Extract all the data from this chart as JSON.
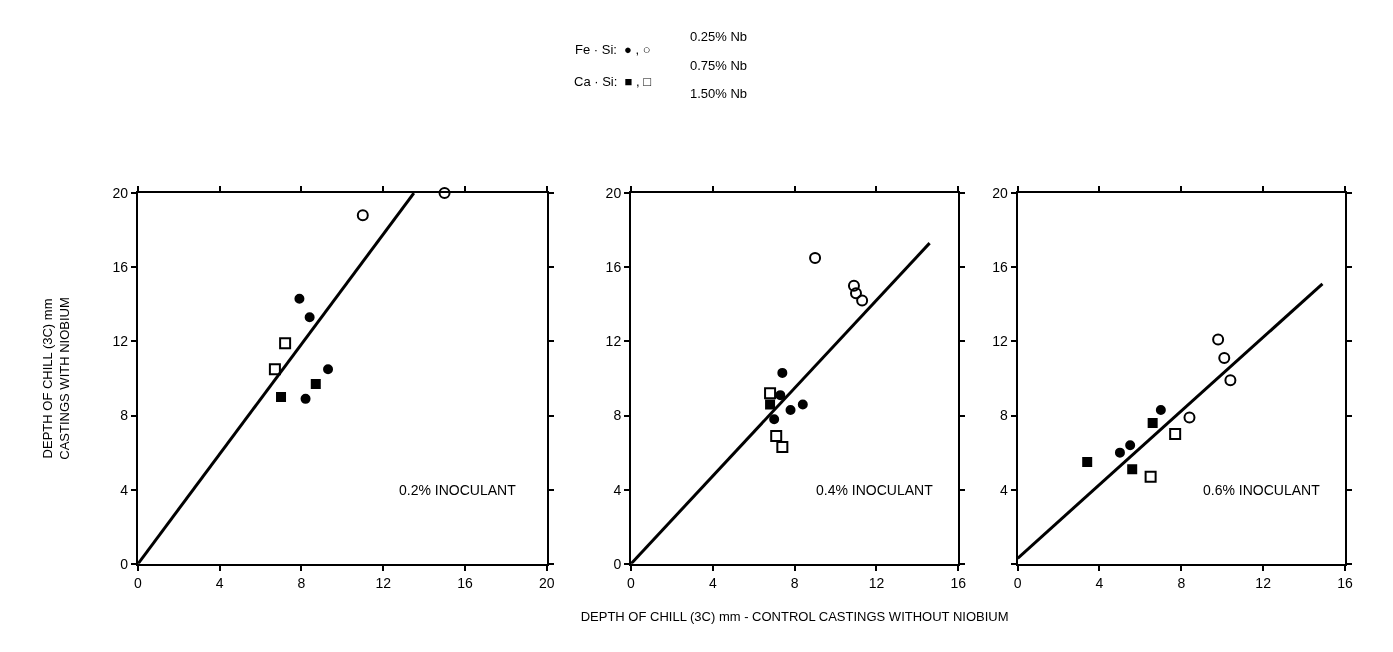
{
  "chart_data": [
    {
      "type": "scatter",
      "ylabel": "DEPTH OF CHILL (3C) mm\nCASTINGS WITH NIOBIUM",
      "xlim": [
        0,
        20
      ],
      "ylim": [
        0,
        20
      ],
      "xticks": [
        0,
        4,
        8,
        12,
        16,
        20
      ],
      "yticks": [
        0,
        4,
        8,
        12,
        16,
        20
      ],
      "annotations": [
        "0.2% INOCULANT",
        "Fe · Si:  ● , ○",
        "Ca · Si:  ■ , □",
        "0.25% Nb",
        "0.75% Nb",
        "1.50% Nb"
      ],
      "series": [
        {
          "color": "#000000",
          "marker": "circle",
          "x": [
            7.9,
            8.4,
            9.3,
            8.2
          ],
          "values": [
            14.3,
            13.3,
            10.5,
            8.9
          ]
        },
        {
          "color": "#000000",
          "marker": "circle-open",
          "x": [
            11.0,
            15.0
          ],
          "values": [
            18.8,
            20.0
          ]
        },
        {
          "color": "#000000",
          "marker": "square",
          "x": [
            8.7,
            7.0
          ],
          "values": [
            9.7,
            9.0
          ]
        },
        {
          "color": "#000000",
          "marker": "square-open",
          "x": [
            7.2,
            6.7
          ],
          "values": [
            11.9,
            10.5
          ]
        },
        {
          "type": "line",
          "color": "#000000",
          "marker": "none",
          "line_style": "solid",
          "x": [
            0,
            13.5
          ],
          "values": [
            0,
            20
          ]
        }
      ]
    },
    {
      "type": "scatter",
      "xlabel": "DEPTH OF CHILL (3C) mm - CONTROL CASTINGS WITHOUT NIOBIUM",
      "xlim": [
        0,
        16
      ],
      "ylim": [
        0,
        20
      ],
      "xticks": [
        0,
        4,
        8,
        12,
        16
      ],
      "yticks": [
        0,
        4,
        8,
        12,
        16,
        20
      ],
      "annotations": [
        "0.4% INOCULANT"
      ],
      "series": [
        {
          "color": "#000000",
          "marker": "circle",
          "x": [
            7.4,
            7.3,
            8.4,
            7.8,
            7.0
          ],
          "values": [
            10.3,
            9.1,
            8.6,
            8.3,
            7.8
          ]
        },
        {
          "color": "#000000",
          "marker": "circle-open",
          "x": [
            9.0,
            10.9,
            11.0,
            11.3
          ],
          "values": [
            16.5,
            15.0,
            14.6,
            14.2
          ]
        },
        {
          "color": "#000000",
          "marker": "square",
          "x": [
            6.8
          ],
          "values": [
            8.6
          ]
        },
        {
          "color": "#000000",
          "marker": "square-open",
          "x": [
            6.8,
            7.1,
            7.4
          ],
          "values": [
            9.2,
            6.9,
            6.3
          ]
        },
        {
          "type": "line",
          "color": "#000000",
          "marker": "none",
          "line_style": "solid",
          "x": [
            0,
            14.6
          ],
          "values": [
            0,
            17.3
          ]
        }
      ]
    },
    {
      "type": "scatter",
      "xlim": [
        0,
        16
      ],
      "ylim": [
        0,
        20
      ],
      "xticks": [
        0,
        4,
        8,
        12,
        16
      ],
      "yticks": [
        {
          "value": 0,
          "label": null
        },
        4,
        8,
        12,
        16,
        20
      ],
      "annotations": [
        "0.6% INOCULANT"
      ],
      "series": [
        {
          "color": "#000000",
          "marker": "circle",
          "x": [
            7.0,
            5.5,
            5.0
          ],
          "values": [
            8.3,
            6.4,
            6.0
          ]
        },
        {
          "color": "#000000",
          "marker": "circle-open",
          "x": [
            9.8,
            10.1,
            10.4,
            8.4
          ],
          "values": [
            12.1,
            11.1,
            9.9,
            7.9
          ]
        },
        {
          "color": "#000000",
          "marker": "square",
          "x": [
            6.6,
            5.6,
            3.4
          ],
          "values": [
            7.6,
            5.1,
            5.5
          ]
        },
        {
          "color": "#000000",
          "marker": "square-open",
          "x": [
            7.7,
            6.5
          ],
          "values": [
            7.0,
            4.7
          ]
        },
        {
          "type": "line",
          "color": "#000000",
          "marker": "none",
          "line_style": "solid",
          "x": [
            0,
            14.9
          ],
          "values": [
            0.3,
            15.1
          ]
        }
      ]
    }
  ]
}
